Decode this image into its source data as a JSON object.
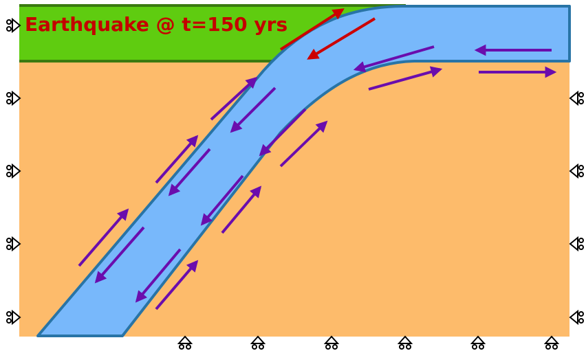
{
  "title": "Earthquake @ t=150 yrs",
  "colors": {
    "crust_upper": "#5fcc10",
    "crust_upper_border": "#3a7a10",
    "mantle": "#fdbb6b",
    "slab": "#78b8fb",
    "slab_border": "#2874a6",
    "title_text": "#c40000",
    "arrow_interseismic": "#6a0dad",
    "arrow_coseismic": "#cc0000",
    "supports": "#000000"
  },
  "icons": {
    "left_supports": "roller-support-icon",
    "right_supports": "roller-support-icon",
    "bottom_supports": "roller-support-icon"
  }
}
